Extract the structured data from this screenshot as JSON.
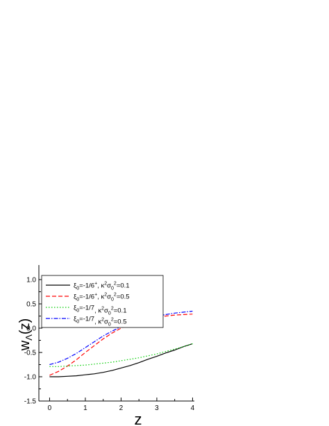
{
  "chart_data": {
    "type": "line",
    "title": "",
    "xlabel": "z",
    "ylabel": "w",
    "ylabel_sub": "Λ",
    "ylabel_arg": "(z)",
    "xlim": [
      -0.3,
      4.05
    ],
    "ylim": [
      -1.5,
      1.3
    ],
    "xticks": [
      0,
      1,
      2,
      3,
      4
    ],
    "yticks": [
      -1.5,
      -1.0,
      -0.5,
      0.0,
      0.5,
      1.0
    ],
    "ytick_labels": [
      "-1.5",
      "-1.0",
      "-0.5",
      "0.0",
      "0.5",
      "1.0"
    ],
    "grid": false,
    "legend_position": "top-left",
    "series": [
      {
        "label_parts": [
          "ξ",
          "0",
          "=-1/6",
          "+",
          ", κ",
          "2",
          "σ",
          "0",
          "2",
          "=0.1"
        ],
        "color": "#000000",
        "dash": "solid",
        "x": [
          0,
          0.25,
          0.5,
          0.75,
          1.0,
          1.25,
          1.5,
          1.75,
          2.0,
          2.25,
          2.5,
          2.75,
          3.0,
          3.25,
          3.5,
          3.75,
          4.0
        ],
        "y": [
          -1.0,
          -1.0,
          -0.99,
          -0.98,
          -0.96,
          -0.94,
          -0.91,
          -0.87,
          -0.82,
          -0.77,
          -0.71,
          -0.64,
          -0.58,
          -0.51,
          -0.45,
          -0.38,
          -0.32
        ]
      },
      {
        "label_parts": [
          "ξ",
          "0",
          "=-1/6",
          "+",
          ", κ",
          "2",
          "σ",
          "0",
          "2",
          "=0.5"
        ],
        "color": "#ff0000",
        "dash": "dashed",
        "x": [
          0,
          0.25,
          0.5,
          0.75,
          1.0,
          1.25,
          1.5,
          1.75,
          2.0,
          2.25,
          2.5,
          2.75,
          3.0,
          3.25,
          3.5,
          3.75,
          4.0
        ],
        "y": [
          -0.97,
          -0.89,
          -0.78,
          -0.65,
          -0.5,
          -0.36,
          -0.22,
          -0.1,
          0.0,
          0.08,
          0.14,
          0.19,
          0.22,
          0.25,
          0.27,
          0.28,
          0.29
        ]
      },
      {
        "label_parts": [
          "ξ",
          "0",
          "=-1/7",
          "",
          ", κ",
          "2",
          "σ",
          "0",
          "2",
          "=0.1"
        ],
        "color": "#00cc00",
        "dash": "dotted",
        "x": [
          0,
          0.25,
          0.5,
          0.75,
          1.0,
          1.25,
          1.5,
          1.75,
          2.0,
          2.25,
          2.5,
          2.75,
          3.0,
          3.25,
          3.5,
          3.75,
          4.0
        ],
        "y": [
          -0.79,
          -0.79,
          -0.78,
          -0.77,
          -0.76,
          -0.74,
          -0.72,
          -0.7,
          -0.67,
          -0.64,
          -0.61,
          -0.57,
          -0.53,
          -0.48,
          -0.43,
          -0.38,
          -0.32
        ]
      },
      {
        "label_parts": [
          "ξ",
          "0",
          "=-1/7",
          "",
          ", κ",
          "2",
          "σ",
          "0",
          "2",
          "=0.5"
        ],
        "color": "#0000ff",
        "dash": "dashdot",
        "x": [
          0,
          0.25,
          0.5,
          0.75,
          1.0,
          1.25,
          1.5,
          1.75,
          2.0,
          2.25,
          2.5,
          2.75,
          3.0,
          3.25,
          3.5,
          3.75,
          4.0
        ],
        "y": [
          -0.75,
          -0.7,
          -0.62,
          -0.52,
          -0.4,
          -0.28,
          -0.16,
          -0.06,
          0.03,
          0.1,
          0.16,
          0.21,
          0.25,
          0.28,
          0.31,
          0.33,
          0.35
        ]
      }
    ]
  }
}
